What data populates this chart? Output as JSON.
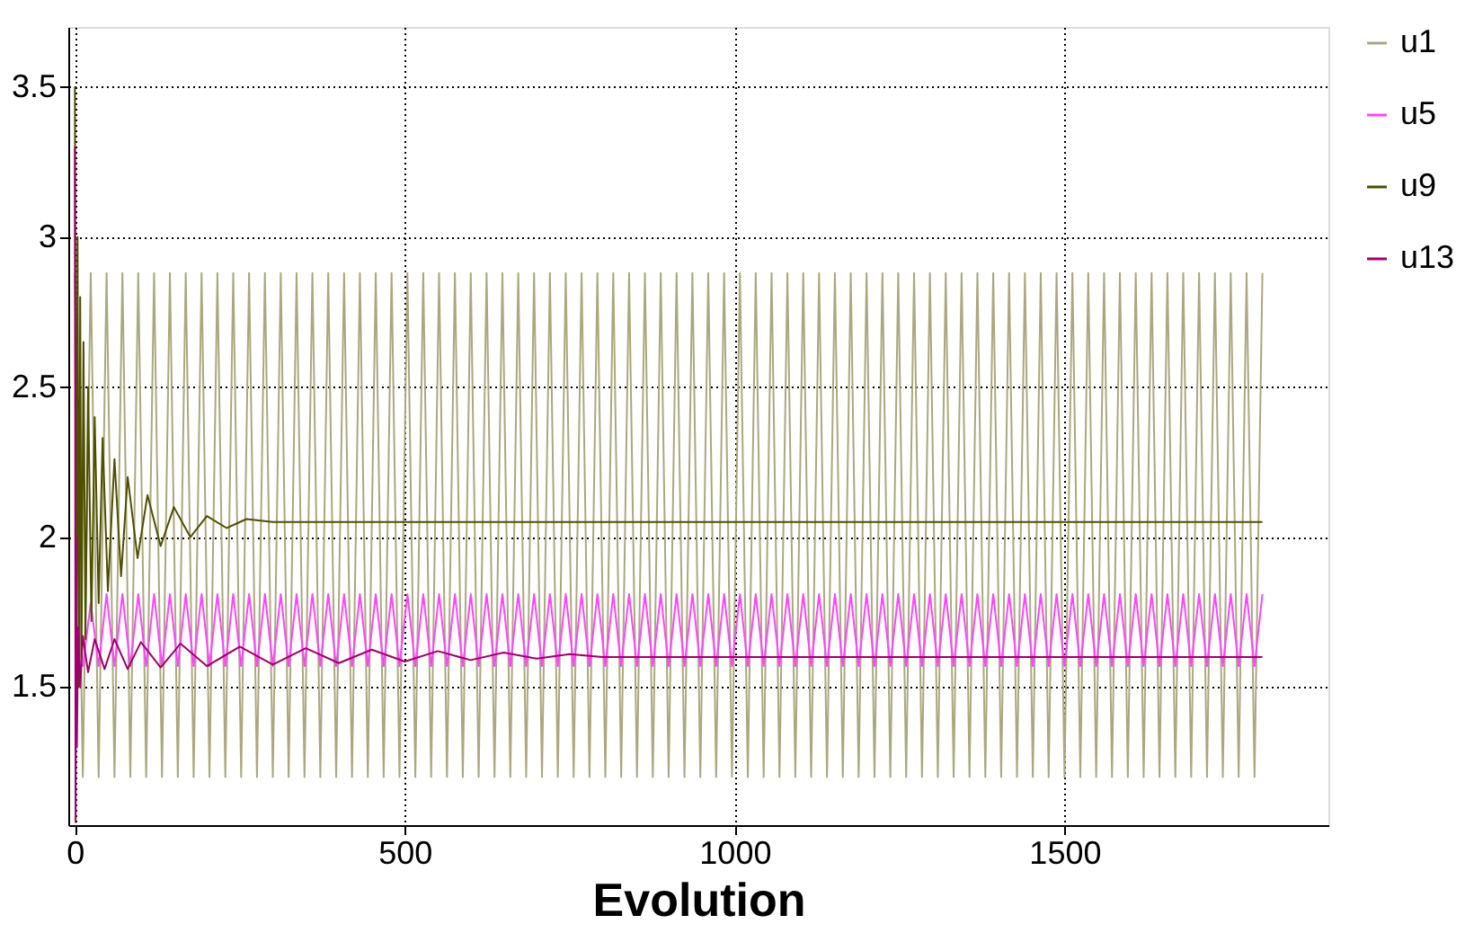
{
  "chart_data": {
    "type": "line",
    "xlabel": "Evolution",
    "xlim": [
      -10,
      1900
    ],
    "xticks": [
      0,
      500,
      1000,
      1500
    ],
    "ylim": [
      1.04,
      3.7
    ],
    "yticks": [
      1.5,
      2,
      2.5,
      3,
      3.5
    ],
    "grid": true,
    "legend": "right",
    "marker": "none",
    "line_style": "solid",
    "series": [
      {
        "name": "u1",
        "color": "#aaa87e",
        "x": [
          0,
          12,
          24,
          36,
          48,
          60,
          72,
          84,
          96,
          108,
          120,
          132,
          144,
          156,
          168,
          180,
          192,
          204,
          216,
          228,
          240,
          252,
          264,
          276,
          288,
          300,
          312,
          324,
          336,
          348,
          360,
          372,
          384,
          396,
          408,
          420,
          432,
          444,
          456,
          468,
          480,
          492,
          504,
          516,
          528,
          540,
          552,
          564,
          576,
          588,
          600,
          612,
          624,
          636,
          648,
          660,
          672,
          684,
          696,
          708,
          720,
          732,
          744,
          756,
          768,
          780,
          792,
          804,
          816,
          828,
          840,
          852,
          864,
          876,
          888,
          900,
          912,
          924,
          936,
          948,
          960,
          972,
          984,
          996,
          1008,
          1020,
          1032,
          1044,
          1056,
          1068,
          1080,
          1092,
          1104,
          1116,
          1128,
          1140,
          1152,
          1164,
          1176,
          1188,
          1200,
          1212,
          1224,
          1236,
          1248,
          1260,
          1272,
          1284,
          1296,
          1308,
          1320,
          1332,
          1344,
          1356,
          1368,
          1380,
          1392,
          1404,
          1416,
          1428,
          1440,
          1452,
          1464,
          1476,
          1488,
          1500,
          1512,
          1524,
          1536,
          1548,
          1560,
          1572,
          1584,
          1596,
          1608,
          1620,
          1632,
          1644,
          1656,
          1668,
          1680,
          1692,
          1704,
          1716,
          1728,
          1740,
          1752,
          1764,
          1776,
          1788,
          1800
        ],
        "values": [
          2.88,
          1.2,
          2.88,
          1.2,
          2.88,
          1.2,
          2.88,
          1.2,
          2.88,
          1.2,
          2.88,
          1.2,
          2.88,
          1.2,
          2.88,
          1.2,
          2.88,
          1.2,
          2.88,
          1.2,
          2.88,
          1.2,
          2.88,
          1.2,
          2.88,
          1.2,
          2.88,
          1.2,
          2.88,
          1.2,
          2.88,
          1.2,
          2.88,
          1.2,
          2.88,
          1.2,
          2.88,
          1.2,
          2.88,
          1.2,
          2.88,
          1.2,
          2.88,
          1.2,
          2.88,
          1.2,
          2.88,
          1.2,
          2.88,
          1.2,
          2.88,
          1.2,
          2.88,
          1.2,
          2.88,
          1.2,
          2.88,
          1.2,
          2.88,
          1.2,
          2.88,
          1.2,
          2.88,
          1.2,
          2.88,
          1.2,
          2.88,
          1.2,
          2.88,
          1.2,
          2.88,
          1.2,
          2.88,
          1.2,
          2.88,
          1.2,
          2.88,
          1.2,
          2.88,
          1.2,
          2.88,
          1.2,
          2.88,
          1.2,
          2.88,
          1.2,
          2.88,
          1.2,
          2.88,
          1.2,
          2.88,
          1.2,
          2.88,
          1.2,
          2.88,
          1.2,
          2.88,
          1.2,
          2.88,
          1.2,
          2.88,
          1.2,
          2.88,
          1.2,
          2.88,
          1.2,
          2.88,
          1.2,
          2.88,
          1.2,
          2.88,
          1.2,
          2.88,
          1.2,
          2.88,
          1.2,
          2.88,
          1.2,
          2.88,
          1.2,
          2.88,
          1.2,
          2.88,
          1.2,
          2.88,
          1.2,
          2.88,
          1.2,
          2.88,
          1.2,
          2.88,
          1.2,
          2.88,
          1.2,
          2.88,
          1.2,
          2.88,
          1.2,
          2.88,
          1.2,
          2.88,
          1.2,
          2.88,
          1.2,
          2.88,
          1.2,
          2.88,
          1.2,
          2.88,
          1.2,
          2.88
        ]
      },
      {
        "name": "u5",
        "color": "#ff44ff",
        "x": [
          0,
          12,
          24,
          36,
          48,
          60,
          72,
          84,
          96,
          108,
          120,
          132,
          144,
          156,
          168,
          180,
          192,
          204,
          216,
          228,
          240,
          252,
          264,
          276,
          288,
          300,
          312,
          324,
          336,
          348,
          360,
          372,
          384,
          396,
          408,
          420,
          432,
          444,
          456,
          468,
          480,
          492,
          504,
          516,
          528,
          540,
          552,
          564,
          576,
          588,
          600,
          612,
          624,
          636,
          648,
          660,
          672,
          684,
          696,
          708,
          720,
          732,
          744,
          756,
          768,
          780,
          792,
          804,
          816,
          828,
          840,
          852,
          864,
          876,
          888,
          900,
          912,
          924,
          936,
          948,
          960,
          972,
          984,
          996,
          1008,
          1020,
          1032,
          1044,
          1056,
          1068,
          1080,
          1092,
          1104,
          1116,
          1128,
          1140,
          1152,
          1164,
          1176,
          1188,
          1200,
          1212,
          1224,
          1236,
          1248,
          1260,
          1272,
          1284,
          1296,
          1308,
          1320,
          1332,
          1344,
          1356,
          1368,
          1380,
          1392,
          1404,
          1416,
          1428,
          1440,
          1452,
          1464,
          1476,
          1488,
          1500,
          1512,
          1524,
          1536,
          1548,
          1560,
          1572,
          1584,
          1596,
          1608,
          1620,
          1632,
          1644,
          1656,
          1668,
          1680,
          1692,
          1704,
          1716,
          1728,
          1740,
          1752,
          1764,
          1776,
          1788,
          1800
        ],
        "values": [
          1.6,
          1.57,
          1.78,
          1.57,
          1.81,
          1.57,
          1.81,
          1.57,
          1.81,
          1.57,
          1.81,
          1.57,
          1.81,
          1.57,
          1.81,
          1.57,
          1.81,
          1.57,
          1.81,
          1.57,
          1.81,
          1.57,
          1.81,
          1.57,
          1.81,
          1.57,
          1.81,
          1.57,
          1.81,
          1.57,
          1.81,
          1.57,
          1.81,
          1.57,
          1.81,
          1.57,
          1.81,
          1.57,
          1.81,
          1.57,
          1.81,
          1.57,
          1.81,
          1.57,
          1.81,
          1.57,
          1.81,
          1.57,
          1.81,
          1.57,
          1.81,
          1.57,
          1.81,
          1.57,
          1.81,
          1.57,
          1.81,
          1.57,
          1.81,
          1.57,
          1.81,
          1.57,
          1.81,
          1.57,
          1.81,
          1.57,
          1.81,
          1.57,
          1.81,
          1.57,
          1.81,
          1.57,
          1.81,
          1.57,
          1.81,
          1.57,
          1.81,
          1.57,
          1.81,
          1.57,
          1.81,
          1.57,
          1.81,
          1.57,
          1.81,
          1.57,
          1.81,
          1.57,
          1.81,
          1.57,
          1.81,
          1.57,
          1.81,
          1.57,
          1.81,
          1.57,
          1.81,
          1.57,
          1.81,
          1.57,
          1.81,
          1.57,
          1.81,
          1.57,
          1.81,
          1.57,
          1.81,
          1.57,
          1.81,
          1.57,
          1.81,
          1.57,
          1.81,
          1.57,
          1.81,
          1.57,
          1.81,
          1.57,
          1.81,
          1.57,
          1.81,
          1.57,
          1.81,
          1.57,
          1.81,
          1.57,
          1.81,
          1.57,
          1.81,
          1.57,
          1.81,
          1.57,
          1.81,
          1.57,
          1.81,
          1.57,
          1.81,
          1.57,
          1.81,
          1.57,
          1.81,
          1.57,
          1.81,
          1.57,
          1.81,
          1.57,
          1.81,
          1.57,
          1.81,
          1.57,
          1.81
        ]
      },
      {
        "name": "u9",
        "color": "#4f4f00",
        "x": [
          0,
          2,
          4,
          6,
          8,
          10,
          13,
          16,
          20,
          25,
          30,
          36,
          42,
          50,
          60,
          70,
          80,
          95,
          110,
          130,
          150,
          175,
          200,
          230,
          260,
          300,
          1800
        ],
        "values": [
          3.5,
          1.3,
          3.0,
          1.5,
          2.8,
          1.6,
          2.65,
          1.66,
          2.5,
          1.72,
          2.4,
          1.78,
          2.33,
          1.82,
          2.26,
          1.87,
          2.2,
          1.93,
          2.14,
          1.97,
          2.1,
          2.0,
          2.07,
          2.03,
          2.06,
          2.05,
          2.05
        ]
      },
      {
        "name": "u13",
        "color": "#a0006e",
        "x": [
          0,
          1,
          2,
          3,
          5,
          8,
          12,
          20,
          30,
          45,
          60,
          80,
          100,
          130,
          160,
          200,
          250,
          300,
          350,
          400,
          450,
          500,
          550,
          600,
          650,
          700,
          750,
          800,
          1800
        ],
        "values": [
          3.3,
          1.05,
          2.0,
          1.3,
          1.7,
          1.5,
          1.67,
          1.55,
          1.66,
          1.56,
          1.66,
          1.56,
          1.65,
          1.565,
          1.645,
          1.57,
          1.635,
          1.575,
          1.63,
          1.58,
          1.625,
          1.585,
          1.62,
          1.59,
          1.615,
          1.595,
          1.61,
          1.6,
          1.6
        ]
      }
    ]
  }
}
